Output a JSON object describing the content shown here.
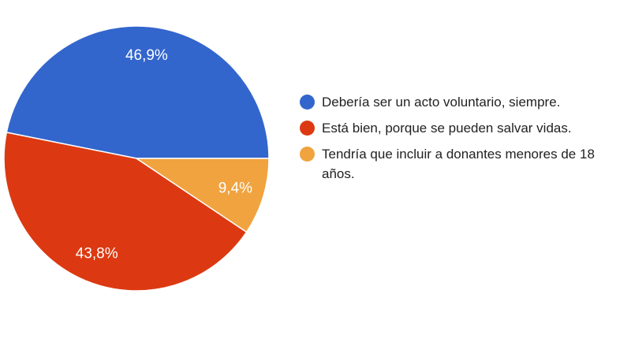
{
  "chart_data": {
    "type": "pie",
    "start_angle_deg": 0,
    "direction": "counterclockwise",
    "slices": [
      {
        "label": "Debería ser un acto voluntario, siempre.",
        "value": 46.9,
        "display": "46,9%",
        "color": "#3366cc"
      },
      {
        "label": "Está bien, porque se pueden salvar vidas.",
        "value": 43.8,
        "display": "43,8%",
        "color": "#dc3912"
      },
      {
        "label": "Tendría que incluir a donantes menores de 18 años.",
        "value": 9.4,
        "display": "9,4%",
        "color": "#f0a33f"
      }
    ],
    "legend_placement": "right"
  }
}
